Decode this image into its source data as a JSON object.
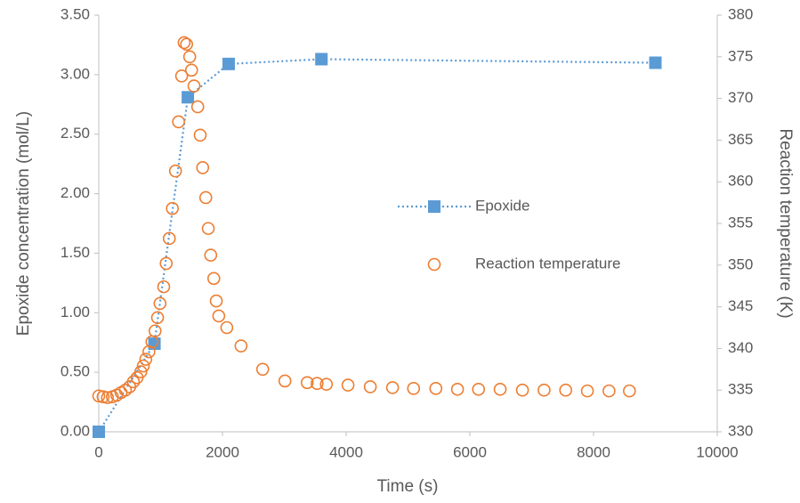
{
  "chart_data": {
    "type": "scatter",
    "x_label": "Time (s)",
    "y_label": "Epoxide concentration (mol/L)",
    "y2_label": "Reaction temperature (K)",
    "xlim": [
      0,
      10000
    ],
    "xticks": [
      0,
      2000,
      4000,
      6000,
      8000,
      10000
    ],
    "ylim": [
      0,
      3.5
    ],
    "yticks": [
      {
        "value": 0,
        "label": "0.00"
      },
      {
        "value": 0.5,
        "label": "0.50"
      },
      {
        "value": 1,
        "label": "1.00"
      },
      {
        "value": 1.5,
        "label": "1.50"
      },
      {
        "value": 2,
        "label": "2.00"
      },
      {
        "value": 2.5,
        "label": "2.50"
      },
      {
        "value": 3,
        "label": "3.00"
      },
      {
        "value": 3.5,
        "label": "3.50"
      }
    ],
    "y2lim": [
      330,
      380
    ],
    "y2ticks": [
      330,
      335,
      340,
      345,
      350,
      355,
      360,
      365,
      370,
      375,
      380
    ],
    "grid": false,
    "legend": "right",
    "series": [
      {
        "name": "Epoxide",
        "color": "#5b9bd5",
        "marker": "square",
        "line": "dotted",
        "x": [
          0,
          900,
          1440,
          2100,
          3600,
          9000
        ],
        "values": [
          0,
          0.74,
          2.81,
          3.09,
          3.13,
          3.1
        ]
      },
      {
        "name": "Reaction temperature",
        "color": "#ed7d31",
        "marker": "circle",
        "axis": "y2",
        "x": [
          0,
          70,
          140,
          220,
          290,
          360,
          430,
          500,
          560,
          620,
          680,
          720,
          760,
          810,
          860,
          910,
          950,
          990,
          1050,
          1090,
          1140,
          1190,
          1240,
          1290,
          1340,
          1380,
          1420,
          1470,
          1500,
          1540,
          1600,
          1640,
          1680,
          1730,
          1770,
          1810,
          1860,
          1900,
          1940,
          2070,
          2300,
          2650,
          3010,
          3370,
          3530,
          3680,
          4030,
          4390,
          4750,
          5090,
          5450,
          5800,
          6140,
          6490,
          6850,
          7200,
          7550,
          7900,
          8250,
          8580
        ],
        "values": [
          334.3,
          334.2,
          334.1,
          334.2,
          334.4,
          334.7,
          335.0,
          335.4,
          336.0,
          336.5,
          337.2,
          337.9,
          338.7,
          339.6,
          340.8,
          342.1,
          343.7,
          345.4,
          347.4,
          350.2,
          353.2,
          356.8,
          361.3,
          367.2,
          372.7,
          376.7,
          376.5,
          375.0,
          373.4,
          371.5,
          369.0,
          365.6,
          361.7,
          358.1,
          354.4,
          351.2,
          348.4,
          345.7,
          343.9,
          342.5,
          340.3,
          337.5,
          336.1,
          335.9,
          335.8,
          335.7,
          335.6,
          335.4,
          335.3,
          335.2,
          335.2,
          335.1,
          335.1,
          335.1,
          335.0,
          335.0,
          335.0,
          334.9,
          334.9,
          334.9
        ]
      }
    ]
  }
}
